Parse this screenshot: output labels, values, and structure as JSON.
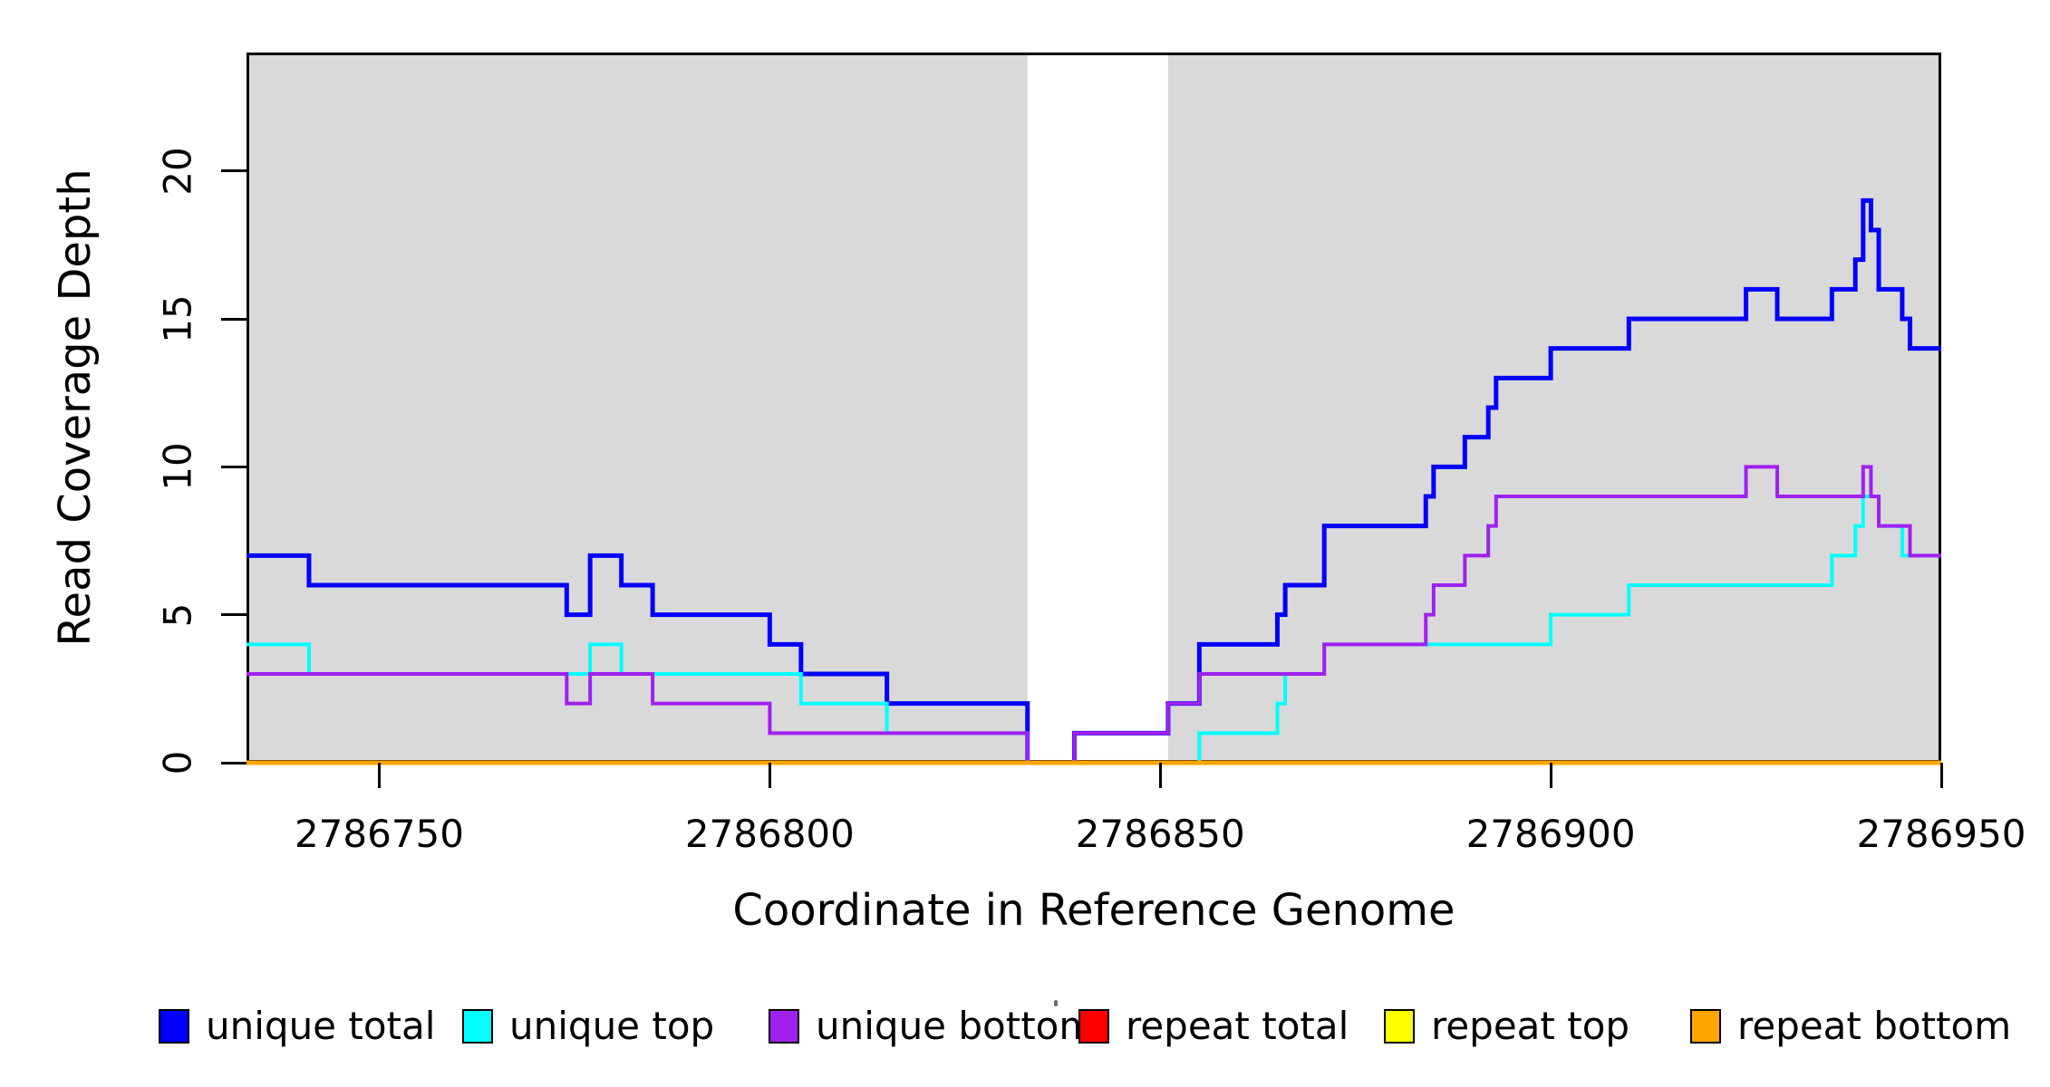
{
  "chart_data": {
    "type": "line",
    "subtype": "step",
    "xlabel": "Coordinate in Reference Genome",
    "ylabel": "Read Coverage Depth",
    "xlim": [
      2786733,
      2786950
    ],
    "ylim": [
      0,
      24
    ],
    "x_ticks": [
      2786750,
      2786800,
      2786850,
      2786900,
      2786950
    ],
    "y_ticks": [
      0,
      5,
      10,
      15,
      20
    ],
    "grid": false,
    "background_color": "#ffffff",
    "shade_color": "#D9D9D9",
    "shaded_regions": [
      [
        2786733,
        2786833
      ],
      [
        2786851,
        2786950
      ]
    ],
    "legend_position": "bottom",
    "series": [
      {
        "name": "unique total",
        "color": "#0000FF",
        "stroke_width": 5,
        "steps": [
          [
            2786733,
            7
          ],
          [
            2786741,
            6
          ],
          [
            2786774,
            5
          ],
          [
            2786777,
            7
          ],
          [
            2786781,
            6
          ],
          [
            2786785,
            5
          ],
          [
            2786800,
            4
          ],
          [
            2786804,
            3
          ],
          [
            2786815,
            2
          ],
          [
            2786833,
            0
          ],
          [
            2786839,
            1
          ],
          [
            2786851,
            2
          ],
          [
            2786855,
            4
          ],
          [
            2786865,
            5
          ],
          [
            2786866,
            6
          ],
          [
            2786871,
            8
          ],
          [
            2786884,
            9
          ],
          [
            2786885,
            10
          ],
          [
            2786889,
            11
          ],
          [
            2786892,
            12
          ],
          [
            2786893,
            13
          ],
          [
            2786900,
            14
          ],
          [
            2786910,
            15
          ],
          [
            2786925,
            16
          ],
          [
            2786929,
            15
          ],
          [
            2786936,
            16
          ],
          [
            2786939,
            17
          ],
          [
            2786940,
            19
          ],
          [
            2786941,
            18
          ],
          [
            2786942,
            16
          ],
          [
            2786945,
            15
          ],
          [
            2786946,
            14
          ]
        ]
      },
      {
        "name": "unique top",
        "color": "#00FFFF",
        "stroke_width": 4,
        "steps": [
          [
            2786733,
            4
          ],
          [
            2786741,
            3
          ],
          [
            2786777,
            4
          ],
          [
            2786781,
            3
          ],
          [
            2786804,
            2
          ],
          [
            2786815,
            1
          ],
          [
            2786833,
            0
          ],
          [
            2786855,
            1
          ],
          [
            2786865,
            2
          ],
          [
            2786866,
            3
          ],
          [
            2786871,
            4
          ],
          [
            2786900,
            5
          ],
          [
            2786910,
            6
          ],
          [
            2786936,
            7
          ],
          [
            2786939,
            8
          ],
          [
            2786940,
            9
          ],
          [
            2786942,
            8
          ],
          [
            2786945,
            7
          ]
        ]
      },
      {
        "name": "unique bottom",
        "color": "#A020F0",
        "stroke_width": 4,
        "steps": [
          [
            2786733,
            3
          ],
          [
            2786774,
            2
          ],
          [
            2786777,
            3
          ],
          [
            2786785,
            2
          ],
          [
            2786800,
            1
          ],
          [
            2786833,
            0
          ],
          [
            2786839,
            1
          ],
          [
            2786851,
            2
          ],
          [
            2786855,
            3
          ],
          [
            2786871,
            4
          ],
          [
            2786884,
            5
          ],
          [
            2786885,
            6
          ],
          [
            2786889,
            7
          ],
          [
            2786892,
            8
          ],
          [
            2786893,
            9
          ],
          [
            2786925,
            10
          ],
          [
            2786929,
            9
          ],
          [
            2786940,
            10
          ],
          [
            2786941,
            9
          ],
          [
            2786942,
            8
          ],
          [
            2786946,
            7
          ]
        ]
      },
      {
        "name": "repeat total",
        "color": "#FF0000",
        "stroke_width": 4,
        "steps": [
          [
            2786733,
            0
          ]
        ]
      },
      {
        "name": "repeat top",
        "color": "#FFFF00",
        "stroke_width": 4,
        "steps": [
          [
            2786733,
            0
          ]
        ]
      },
      {
        "name": "repeat bottom",
        "color": "#FFA500",
        "stroke_width": 5,
        "steps": [
          [
            2786733,
            0
          ]
        ]
      }
    ]
  }
}
